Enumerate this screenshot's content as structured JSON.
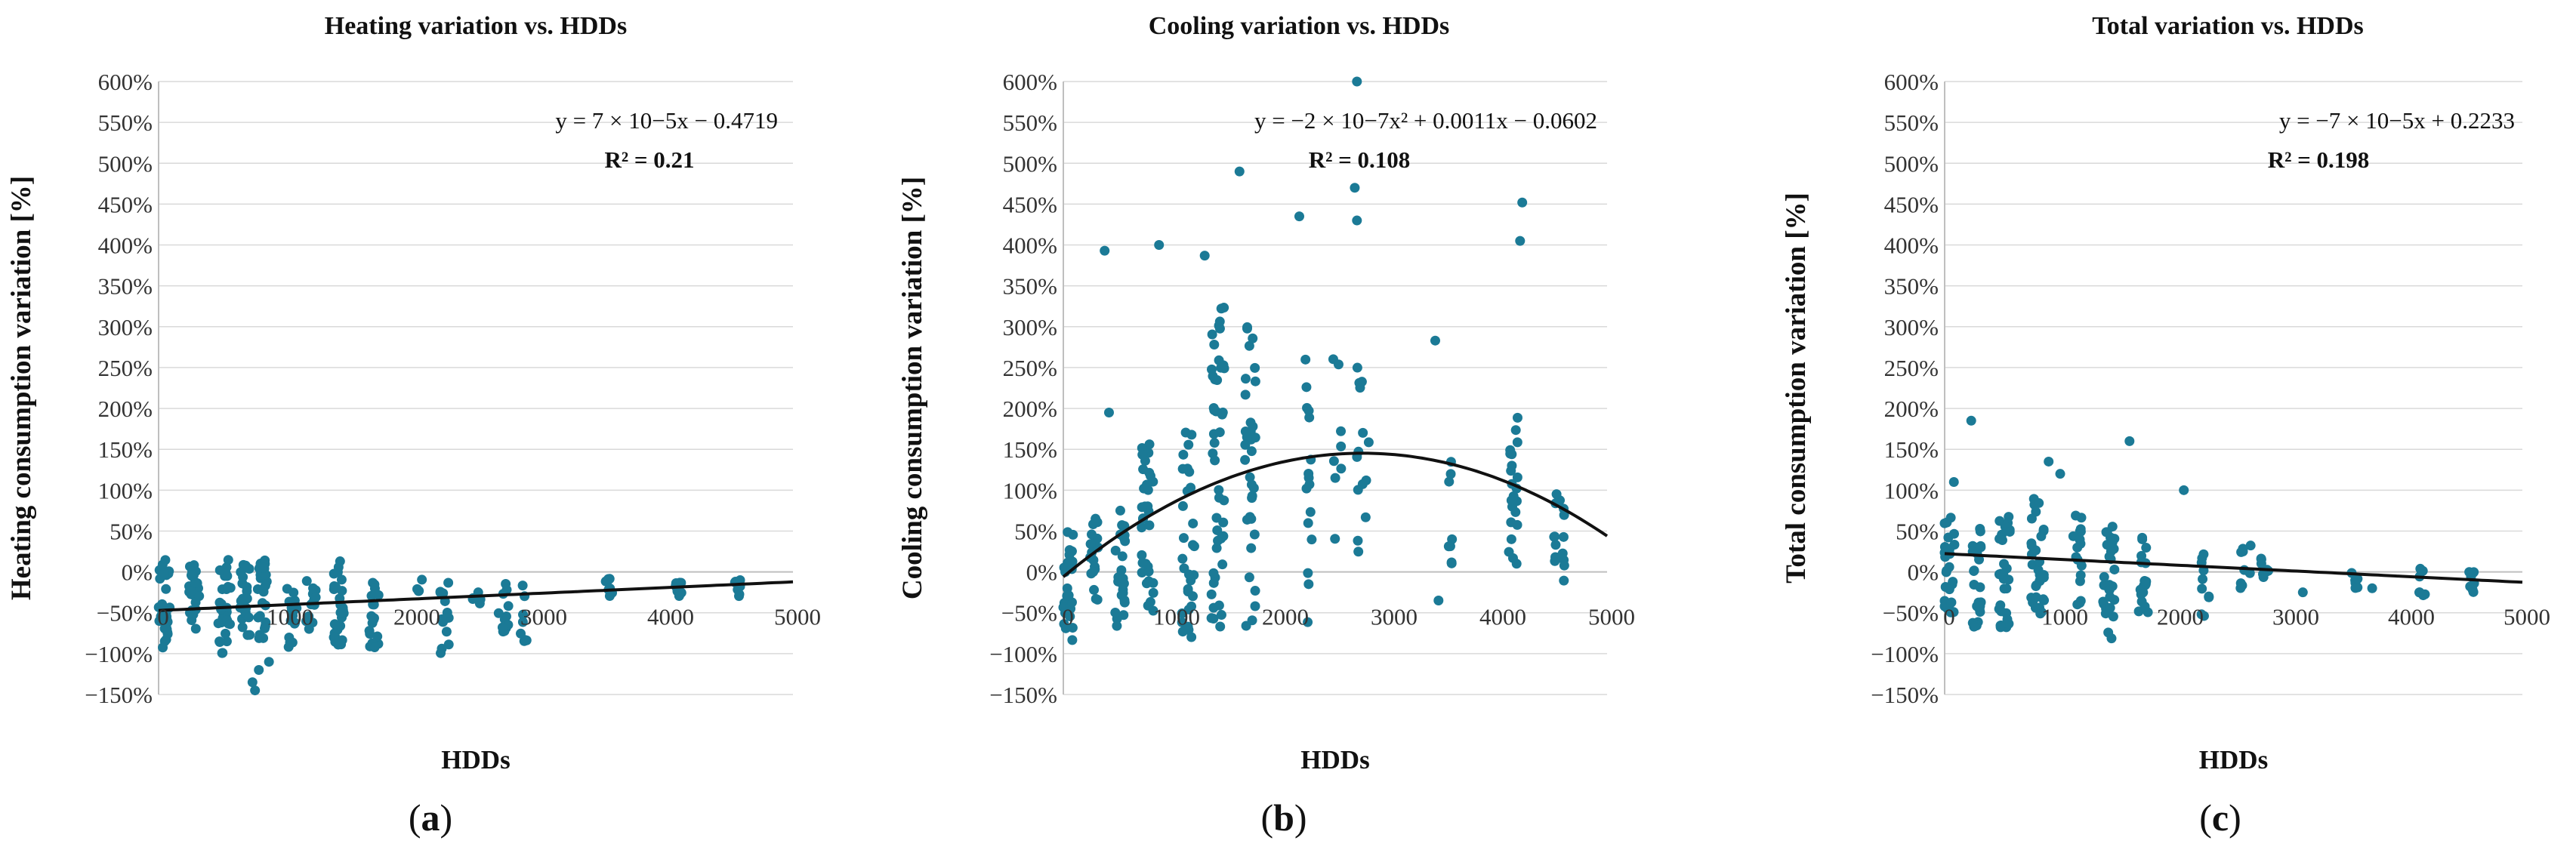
{
  "colors": {
    "point": "#1b7a96",
    "trend": "#111111",
    "grid": "#d9d9d9",
    "axis": "#bfbfbf"
  },
  "chart_data": [
    {
      "type": "scatter",
      "panel": "(a)",
      "panel_open": "(",
      "panel_letter": "a",
      "panel_close": ")",
      "title": "Heating variation vs. HDDs",
      "xlabel": "HDDs",
      "ylabel": "Heating consumption variation [%]",
      "xlim": [
        0,
        5000
      ],
      "ylim": [
        -150,
        600
      ],
      "xticks": [
        0,
        1000,
        2000,
        3000,
        4000,
        5000
      ],
      "xtick_labels": [
        "0",
        "1000",
        "2000",
        "3000",
        "4000",
        "5000"
      ],
      "yticks": [
        -150,
        -100,
        -50,
        0,
        50,
        100,
        150,
        200,
        250,
        300,
        350,
        400,
        450,
        500,
        550,
        600
      ],
      "ytick_labels": [
        "−150%",
        "−100%",
        "−50%",
        "0%",
        "50%",
        "100%",
        "150%",
        "200%",
        "250%",
        "300%",
        "350%",
        "400%",
        "450%",
        "500%",
        "550%",
        "600%"
      ],
      "equation": "y = 7 ×  10−5x − 0.4719",
      "r2": "R² = 0.21",
      "trend": {
        "kind": "linear",
        "a": 0.007,
        "b": -47.19
      },
      "clusters": [
        {
          "x": 40,
          "n": 30,
          "ymin": -95,
          "ymax": 15,
          "dx": 50
        },
        {
          "x": 280,
          "n": 26,
          "ymin": -70,
          "ymax": 12,
          "dx": 40
        },
        {
          "x": 520,
          "n": 30,
          "ymin": -100,
          "ymax": 15,
          "dx": 50
        },
        {
          "x": 680,
          "n": 24,
          "ymin": -80,
          "ymax": 10,
          "dx": 40
        },
        {
          "x": 820,
          "n": 26,
          "ymin": -90,
          "ymax": 15,
          "dx": 40
        },
        {
          "x": 1050,
          "n": 16,
          "ymin": -95,
          "ymax": -20,
          "dx": 40
        },
        {
          "x": 1200,
          "n": 12,
          "ymin": -70,
          "ymax": -10,
          "dx": 40
        },
        {
          "x": 1420,
          "n": 28,
          "ymin": -95,
          "ymax": 15,
          "dx": 40
        },
        {
          "x": 1700,
          "n": 18,
          "ymin": -95,
          "ymax": -10,
          "dx": 40
        },
        {
          "x": 2060,
          "n": 4,
          "ymin": -40,
          "ymax": -5,
          "dx": 30
        },
        {
          "x": 2250,
          "n": 14,
          "ymin": -100,
          "ymax": -10,
          "dx": 40
        },
        {
          "x": 2500,
          "n": 6,
          "ymin": -45,
          "ymax": -15,
          "dx": 40
        },
        {
          "x": 2720,
          "n": 12,
          "ymin": -75,
          "ymax": -10,
          "dx": 40
        },
        {
          "x": 2880,
          "n": 8,
          "ymin": -85,
          "ymax": -15,
          "dx": 30
        },
        {
          "x": 3550,
          "n": 8,
          "ymin": -35,
          "ymax": -5,
          "dx": 30
        },
        {
          "x": 4100,
          "n": 8,
          "ymin": -30,
          "ymax": -10,
          "dx": 30
        },
        {
          "x": 4560,
          "n": 8,
          "ymin": -30,
          "ymax": -10,
          "dx": 30
        }
      ],
      "extra_points": [
        [
          740,
          -135
        ],
        [
          760,
          -145
        ],
        [
          790,
          -120
        ],
        [
          870,
          -110
        ]
      ]
    },
    {
      "type": "scatter",
      "panel": "(b)",
      "panel_open": "(",
      "panel_letter": "b",
      "panel_close": ")",
      "title": "Cooling variation vs. HDDs",
      "xlabel": "HDDs",
      "ylabel": "Cooling consumption variation [%]",
      "xlim": [
        0,
        5000
      ],
      "ylim": [
        -150,
        600
      ],
      "xticks": [
        0,
        1000,
        2000,
        3000,
        4000,
        5000
      ],
      "xtick_labels": [
        "0",
        "1000",
        "2000",
        "3000",
        "4000",
        "5000"
      ],
      "yticks": [
        -150,
        -100,
        -50,
        0,
        50,
        100,
        150,
        200,
        250,
        300,
        350,
        400,
        450,
        500,
        550,
        600
      ],
      "ytick_labels": [
        "−150%",
        "−100%",
        "−50%",
        "0%",
        "50%",
        "100%",
        "150%",
        "200%",
        "250%",
        "300%",
        "350%",
        "400%",
        "450%",
        "500%",
        "550%",
        "600%"
      ],
      "equation": "y = −2 × 10−7x² + 0.0011x − 0.0602",
      "r2": "R² = 0.108",
      "trend": {
        "kind": "quadratic",
        "a": -2e-05,
        "b": 0.11,
        "c": -6.02
      },
      "clusters": [
        {
          "x": 40,
          "n": 24,
          "ymin": -85,
          "ymax": 50,
          "dx": 50
        },
        {
          "x": 280,
          "n": 20,
          "ymin": -40,
          "ymax": 70,
          "dx": 40
        },
        {
          "x": 520,
          "n": 24,
          "ymin": -70,
          "ymax": 80,
          "dx": 50
        },
        {
          "x": 780,
          "n": 34,
          "ymin": -50,
          "ymax": 170,
          "dx": 60
        },
        {
          "x": 1150,
          "n": 30,
          "ymin": -80,
          "ymax": 200,
          "dx": 60
        },
        {
          "x": 1420,
          "n": 46,
          "ymin": -75,
          "ymax": 340,
          "dx": 60
        },
        {
          "x": 1720,
          "n": 34,
          "ymin": -80,
          "ymax": 310,
          "dx": 50
        },
        {
          "x": 2250,
          "n": 16,
          "ymin": -90,
          "ymax": 280,
          "dx": 40
        },
        {
          "x": 2520,
          "n": 8,
          "ymin": 40,
          "ymax": 300,
          "dx": 40
        },
        {
          "x": 2760,
          "n": 14,
          "ymin": 0,
          "ymax": 270,
          "dx": 60
        },
        {
          "x": 3560,
          "n": 8,
          "ymin": 0,
          "ymax": 140,
          "dx": 30
        },
        {
          "x": 4130,
          "n": 22,
          "ymin": 0,
          "ymax": 200,
          "dx": 50
        },
        {
          "x": 4560,
          "n": 16,
          "ymin": -20,
          "ymax": 100,
          "dx": 50
        }
      ],
      "extra_points": [
        [
          380,
          393
        ],
        [
          880,
          400
        ],
        [
          1300,
          387
        ],
        [
          1620,
          490
        ],
        [
          2170,
          435
        ],
        [
          2700,
          600
        ],
        [
          2680,
          470
        ],
        [
          2700,
          430
        ],
        [
          4220,
          452
        ],
        [
          4200,
          405
        ],
        [
          3420,
          283
        ],
        [
          3450,
          -35
        ],
        [
          420,
          195
        ]
      ]
    },
    {
      "type": "scatter",
      "panel": "(c)",
      "panel_open": "(",
      "panel_letter": "c",
      "panel_close": ")",
      "title": "Total variation vs. HDDs",
      "xlabel": "HDDs",
      "ylabel": "Total consumption variation [%]",
      "xlim": [
        0,
        5000
      ],
      "ylim": [
        -150,
        600
      ],
      "xticks": [
        0,
        1000,
        2000,
        3000,
        4000,
        5000
      ],
      "xtick_labels": [
        "0",
        "1000",
        "2000",
        "3000",
        "4000",
        "5000"
      ],
      "yticks": [
        -150,
        -100,
        -50,
        0,
        50,
        100,
        150,
        200,
        250,
        300,
        350,
        400,
        450,
        500,
        550,
        600
      ],
      "ytick_labels": [
        "−150%",
        "−100%",
        "−50%",
        "0%",
        "50%",
        "100%",
        "150%",
        "200%",
        "250%",
        "300%",
        "350%",
        "400%",
        "450%",
        "500%",
        "550%",
        "600%"
      ],
      "equation": "y = −7 × 10−5x + 0.2233",
      "r2": "R² = 0.198",
      "trend": {
        "kind": "linear",
        "a": -0.007,
        "b": 22.33
      },
      "clusters": [
        {
          "x": 40,
          "n": 26,
          "ymin": -50,
          "ymax": 70,
          "dx": 50
        },
        {
          "x": 280,
          "n": 24,
          "ymin": -70,
          "ymax": 60,
          "dx": 40
        },
        {
          "x": 520,
          "n": 28,
          "ymin": -70,
          "ymax": 70,
          "dx": 50
        },
        {
          "x": 800,
          "n": 32,
          "ymin": -60,
          "ymax": 90,
          "dx": 60
        },
        {
          "x": 1150,
          "n": 18,
          "ymin": -40,
          "ymax": 80,
          "dx": 50
        },
        {
          "x": 1420,
          "n": 30,
          "ymin": -85,
          "ymax": 70,
          "dx": 50
        },
        {
          "x": 1720,
          "n": 18,
          "ymin": -50,
          "ymax": 50,
          "dx": 40
        },
        {
          "x": 2250,
          "n": 10,
          "ymin": -65,
          "ymax": 35,
          "dx": 40
        },
        {
          "x": 2600,
          "n": 10,
          "ymin": -20,
          "ymax": 40,
          "dx": 50
        },
        {
          "x": 2770,
          "n": 8,
          "ymin": -10,
          "ymax": 20,
          "dx": 40
        },
        {
          "x": 3550,
          "n": 6,
          "ymin": -20,
          "ymax": 5,
          "dx": 30
        },
        {
          "x": 4130,
          "n": 8,
          "ymin": -30,
          "ymax": 5,
          "dx": 30
        },
        {
          "x": 4560,
          "n": 8,
          "ymin": -25,
          "ymax": 0,
          "dx": 30
        }
      ],
      "extra_points": [
        [
          80,
          110
        ],
        [
          230,
          185
        ],
        [
          900,
          135
        ],
        [
          1600,
          160
        ],
        [
          2070,
          100
        ],
        [
          1000,
          120
        ],
        [
          3100,
          -25
        ],
        [
          3700,
          -20
        ]
      ]
    }
  ]
}
